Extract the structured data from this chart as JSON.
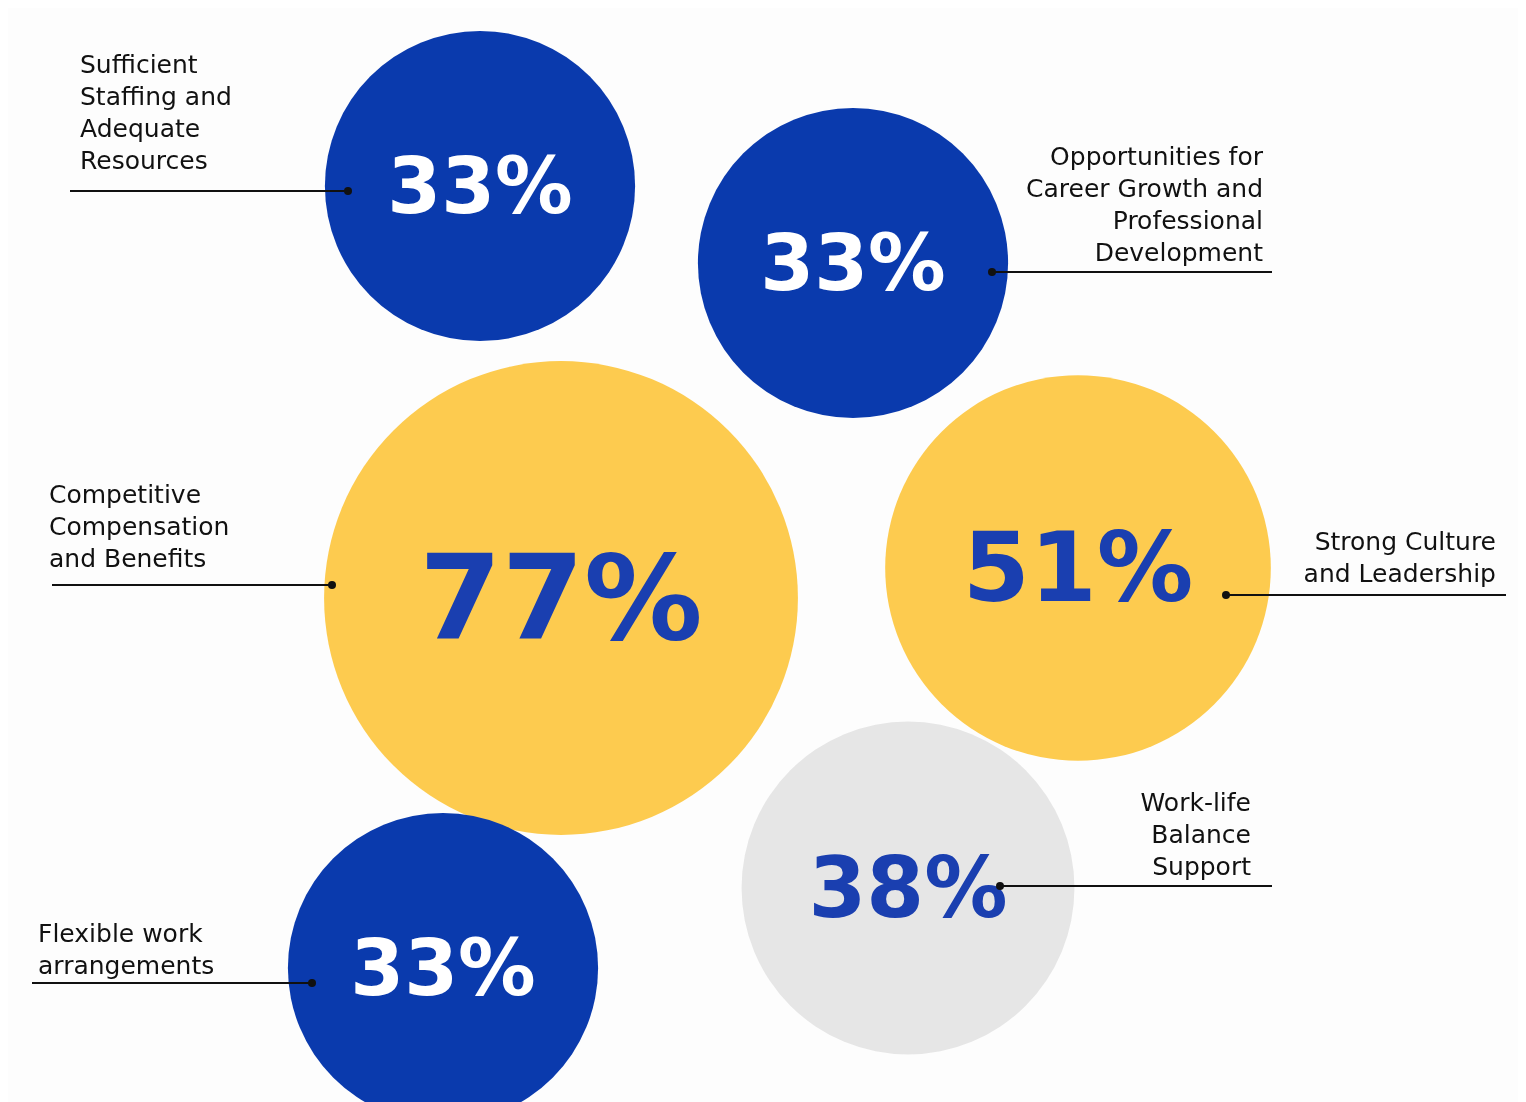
{
  "chart_data": {
    "type": "other",
    "categories": [
      "Sufficient Staffing and Adequate Resources",
      "Opportunities for Career Growth and Professional Development",
      "Competitive Compensation and Benefits",
      "Strong Culture and Leadership",
      "Work-life Balance Support",
      "Flexible work arrangements"
    ],
    "values": [
      33,
      33,
      77,
      51,
      38,
      33
    ],
    "value_labels": [
      "33%",
      "33%",
      "77%",
      "51%",
      "38%",
      "33%"
    ],
    "colors": [
      "#0a3aad",
      "#0a3aad",
      "#fdcb4f",
      "#fdcb4f",
      "#e6e6e6",
      "#0a3aad"
    ]
  }
}
